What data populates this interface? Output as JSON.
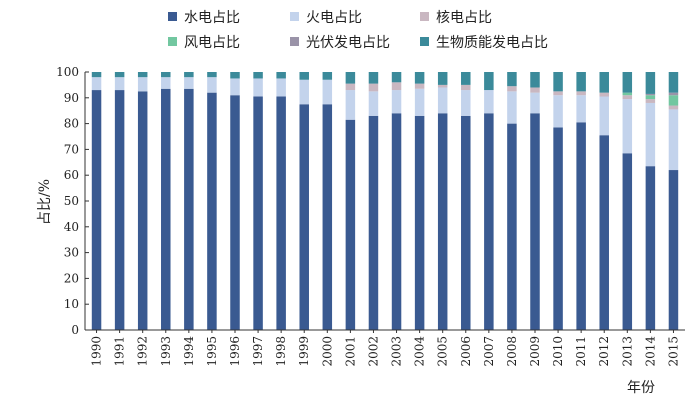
{
  "chart_data": {
    "type": "bar",
    "stacked": true,
    "ylabel": "占比/%",
    "xlabel": "年份",
    "ylim": [
      0,
      100
    ],
    "yticks": [
      0,
      10,
      20,
      30,
      40,
      50,
      60,
      70,
      80,
      90,
      100
    ],
    "grid": false,
    "legend_position": "top",
    "categories": [
      "1990",
      "1991",
      "1992",
      "1993",
      "1994",
      "1995",
      "1996",
      "1997",
      "1998",
      "1999",
      "2000",
      "2001",
      "2002",
      "2003",
      "2004",
      "2005",
      "2006",
      "2007",
      "2008",
      "2009",
      "2010",
      "2011",
      "2012",
      "2013",
      "2014",
      "2015"
    ],
    "series": [
      {
        "name": "水电占比",
        "color": "#3a5a91",
        "values": [
          93,
          93,
          92.5,
          93.5,
          93.5,
          92,
          91,
          90.5,
          90.5,
          87.5,
          87.5,
          81.5,
          83,
          84,
          83,
          84,
          83,
          84,
          80,
          84,
          78.5,
          80.5,
          75.5,
          68.5,
          63.5,
          62
        ]
      },
      {
        "name": "火电占比",
        "color": "#c3d3ec",
        "values": [
          5,
          5,
          5.5,
          4.5,
          4.5,
          6,
          6.5,
          7,
          7,
          9.5,
          9.5,
          11.5,
          9.5,
          9,
          10.5,
          10,
          10,
          9,
          12.5,
          8,
          12.5,
          10.5,
          15,
          21,
          24.5,
          23.5
        ]
      },
      {
        "name": "核电占比",
        "color": "#c9b7c1",
        "values": [
          0,
          0,
          0,
          0,
          0,
          0,
          0,
          0,
          0,
          0,
          0,
          2.5,
          3,
          3,
          2,
          1,
          2,
          0,
          2,
          2,
          1.5,
          1.5,
          1.5,
          1.5,
          1.5,
          1.5
        ]
      },
      {
        "name": "风电占比",
        "color": "#72c7a0",
        "values": [
          0,
          0,
          0,
          0,
          0,
          0,
          0,
          0,
          0,
          0,
          0,
          0,
          0,
          0,
          0,
          0,
          0,
          0,
          0,
          0,
          0,
          0,
          0,
          1,
          1.5,
          4
        ]
      },
      {
        "name": "光伏发电占比",
        "color": "#9a93a8",
        "values": [
          0,
          0,
          0,
          0,
          0,
          0,
          0,
          0,
          0,
          0,
          0,
          0,
          0,
          0,
          0,
          0,
          0,
          0,
          0,
          0,
          0,
          0,
          0,
          0,
          0.5,
          1
        ]
      },
      {
        "name": "生物质能发电占比",
        "color": "#3b8a9a",
        "values": [
          2,
          2,
          2,
          2,
          2,
          2,
          2.5,
          2.5,
          2.5,
          3,
          3,
          4.5,
          4.5,
          4,
          4.5,
          5,
          5,
          7,
          5.5,
          6,
          7.5,
          7.5,
          8,
          8,
          8.5,
          8
        ]
      }
    ]
  }
}
